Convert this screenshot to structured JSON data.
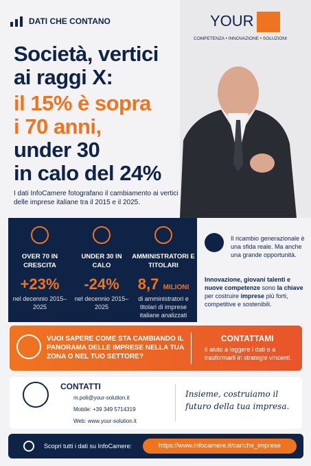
{
  "header": {
    "label": "DATI CHE CONTANO"
  },
  "brand": {
    "name": "YOUR",
    "tagline": "COMPETENZA • INNOVAZIONE • SOLUZIONI"
  },
  "headline": [
    "Società, vertici",
    "ai raggi X:",
    "il 15% è sopra",
    "i 70 anni,",
    "under 30",
    "in calo del 24%"
  ],
  "intro": "I dati InfoCamere fotografano il cambiamento ai vertici delle imprese italiane tra il 2015 e il 2025.",
  "stats": [
    {
      "label": "OVER 70 IN CRESCITA",
      "value": "+23%",
      "desc": "nel decennio 2015–2025"
    },
    {
      "label": "UNDER 30 IN CALO",
      "value": "-24%",
      "desc": "nel decennio 2015–2025"
    },
    {
      "label": "AMMINISTRATORI E TITOLARI",
      "value": "8,7",
      "unit": "MILIONI",
      "desc": "di amministratori e titolari di imprese italiane analizzati"
    }
  ],
  "side": {
    "p1": "Il ricambio generazionale è una sfida reale. Ma anche una grande opportunità.",
    "p2": [
      "Innovazione, giovani talenti e nuove competenze",
      " sono ",
      "la chiave",
      " per costruire ",
      "imprese",
      " più forti, competitive e sostenibili."
    ]
  },
  "cta": {
    "question": "VUOI SAPERE COME STA CAMBIANDO IL PANORAMA DELLE IMPRESE NELLA TUA ZONA O NEL TUO SETTORE?",
    "action": "CONTATTAMI",
    "text": "ti aiuto a leggere i dati e a trasformarli in strategie vincenti."
  },
  "contacts": {
    "title": "CONTATTI",
    "email": "m.poli@your-solution.it",
    "phone": "Mobile: +39 349 5714319",
    "web": "Web: www.your-solution.it"
  },
  "slogan": "Insieme, costruiamo il futuro della tua impresa.",
  "footer": {
    "label": "Scopri tutti i dati su InfoCamere:",
    "url": "https://www.infocamere.it/cariche_imprese"
  }
}
